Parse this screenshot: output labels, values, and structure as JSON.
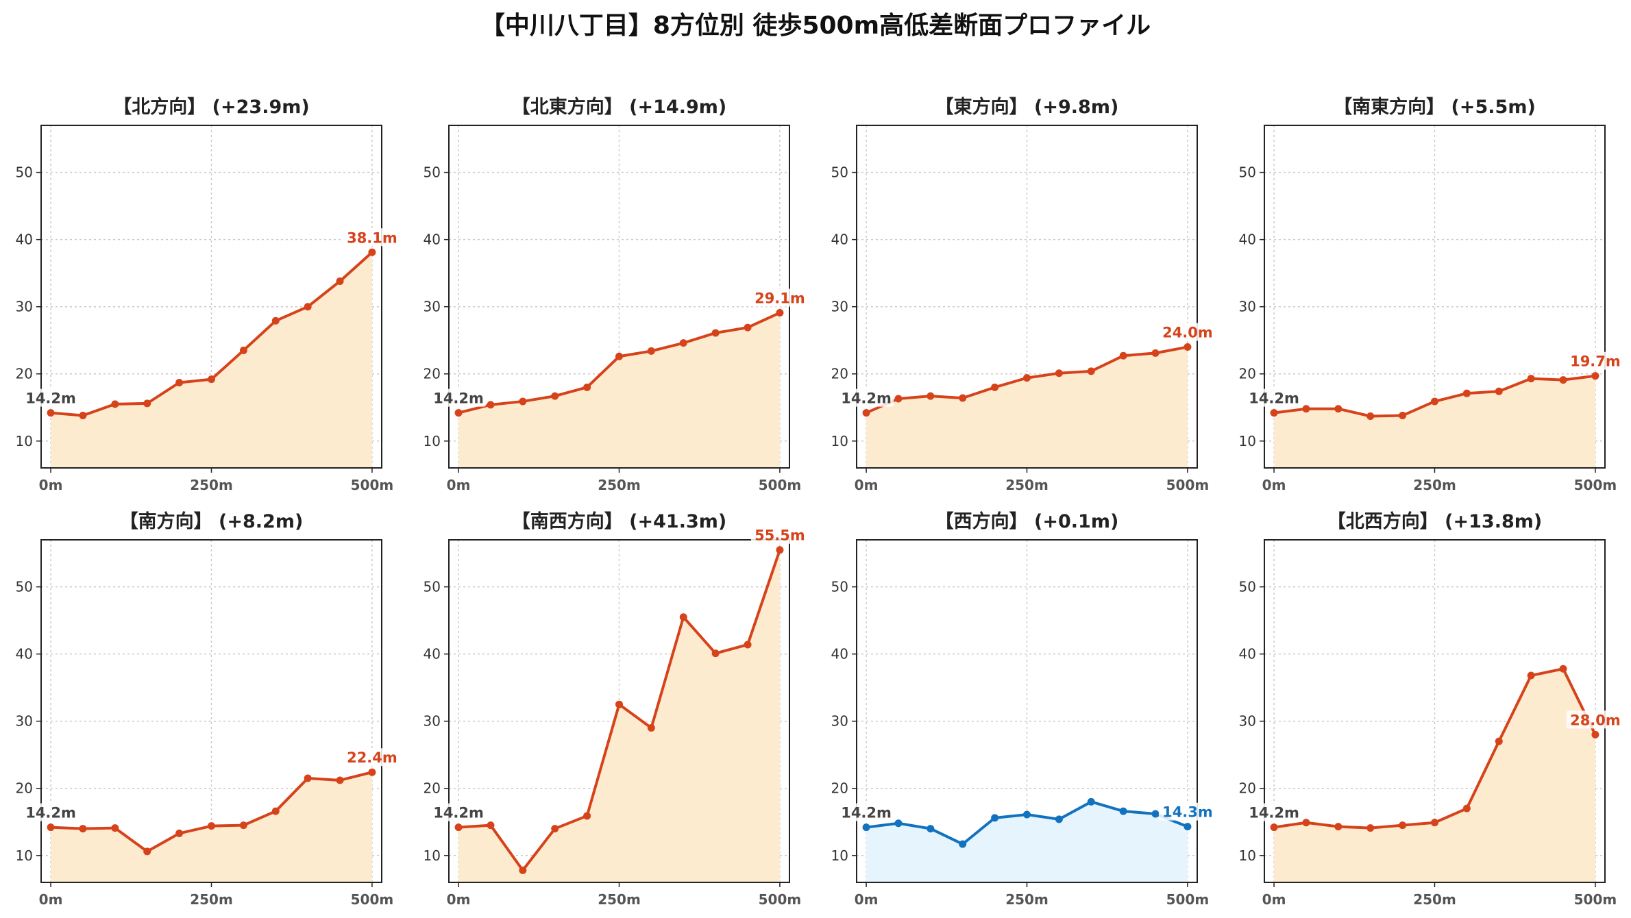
{
  "title": "【中川八丁目】8方位別 徒歩500m高低差断面プロファイル",
  "colors": {
    "up_line": "#d6431b",
    "up_fill": "#fdebd0",
    "flat_line": "#1272c0",
    "flat_fill": "#e6f5fd"
  },
  "chart_data": [
    {
      "type": "line",
      "title": "【北方向】 (+23.9m)",
      "x": [
        0,
        50,
        100,
        150,
        200,
        250,
        300,
        350,
        400,
        450,
        500
      ],
      "values": [
        14.2,
        13.8,
        15.5,
        15.6,
        18.7,
        19.2,
        23.5,
        27.9,
        30.0,
        33.8,
        38.1
      ],
      "start_label": "14.2m",
      "end_label": "38.1m",
      "color": "up",
      "xticks": [
        "0m",
        "250m",
        "500m"
      ],
      "yticks": [
        10,
        20,
        30,
        40,
        50
      ],
      "ylim": [
        6,
        57
      ],
      "xlim": [
        -15,
        515
      ],
      "grid": true
    },
    {
      "type": "line",
      "title": "【北東方向】 (+14.9m)",
      "x": [
        0,
        50,
        100,
        150,
        200,
        250,
        300,
        350,
        400,
        450,
        500
      ],
      "values": [
        14.2,
        15.4,
        15.9,
        16.7,
        18.0,
        22.6,
        23.4,
        24.6,
        26.1,
        26.9,
        29.1
      ],
      "start_label": "14.2m",
      "end_label": "29.1m",
      "color": "up",
      "xticks": [
        "0m",
        "250m",
        "500m"
      ],
      "yticks": [
        10,
        20,
        30,
        40,
        50
      ],
      "ylim": [
        6,
        57
      ],
      "xlim": [
        -15,
        515
      ],
      "grid": true
    },
    {
      "type": "line",
      "title": "【東方向】 (+9.8m)",
      "x": [
        0,
        50,
        100,
        150,
        200,
        250,
        300,
        350,
        400,
        450,
        500
      ],
      "values": [
        14.2,
        16.3,
        16.7,
        16.4,
        18.0,
        19.4,
        20.1,
        20.4,
        22.7,
        23.1,
        24.0
      ],
      "start_label": "14.2m",
      "end_label": "24.0m",
      "color": "up",
      "xticks": [
        "0m",
        "250m",
        "500m"
      ],
      "yticks": [
        10,
        20,
        30,
        40,
        50
      ],
      "ylim": [
        6,
        57
      ],
      "xlim": [
        -15,
        515
      ],
      "grid": true
    },
    {
      "type": "line",
      "title": "【南東方向】 (+5.5m)",
      "x": [
        0,
        50,
        100,
        150,
        200,
        250,
        300,
        350,
        400,
        450,
        500
      ],
      "values": [
        14.2,
        14.8,
        14.8,
        13.7,
        13.8,
        15.9,
        17.1,
        17.4,
        19.3,
        19.1,
        19.7
      ],
      "start_label": "14.2m",
      "end_label": "19.7m",
      "color": "up",
      "xticks": [
        "0m",
        "250m",
        "500m"
      ],
      "yticks": [
        10,
        20,
        30,
        40,
        50
      ],
      "ylim": [
        6,
        57
      ],
      "xlim": [
        -15,
        515
      ],
      "grid": true
    },
    {
      "type": "line",
      "title": "【南方向】 (+8.2m)",
      "x": [
        0,
        50,
        100,
        150,
        200,
        250,
        300,
        350,
        400,
        450,
        500
      ],
      "values": [
        14.2,
        14.0,
        14.1,
        10.6,
        13.3,
        14.4,
        14.5,
        16.6,
        21.5,
        21.2,
        22.4
      ],
      "start_label": "14.2m",
      "end_label": "22.4m",
      "color": "up",
      "xticks": [
        "0m",
        "250m",
        "500m"
      ],
      "yticks": [
        10,
        20,
        30,
        40,
        50
      ],
      "ylim": [
        6,
        57
      ],
      "xlim": [
        -15,
        515
      ],
      "grid": true
    },
    {
      "type": "line",
      "title": "【南西方向】 (+41.3m)",
      "x": [
        0,
        50,
        100,
        150,
        200,
        250,
        300,
        350,
        400,
        450,
        500
      ],
      "values": [
        14.2,
        14.5,
        7.8,
        14.0,
        15.9,
        32.5,
        29.0,
        45.5,
        40.1,
        41.4,
        55.5
      ],
      "start_label": "14.2m",
      "end_label": "55.5m",
      "color": "up",
      "xticks": [
        "0m",
        "250m",
        "500m"
      ],
      "yticks": [
        10,
        20,
        30,
        40,
        50
      ],
      "ylim": [
        6,
        57
      ],
      "xlim": [
        -15,
        515
      ],
      "grid": true
    },
    {
      "type": "line",
      "title": "【西方向】 (+0.1m)",
      "x": [
        0,
        50,
        100,
        150,
        200,
        250,
        300,
        350,
        400,
        450,
        500
      ],
      "values": [
        14.2,
        14.8,
        14.0,
        11.7,
        15.6,
        16.1,
        15.4,
        18.0,
        16.6,
        16.2,
        14.3
      ],
      "start_label": "14.2m",
      "end_label": "14.3m",
      "color": "flat",
      "xticks": [
        "0m",
        "250m",
        "500m"
      ],
      "yticks": [
        10,
        20,
        30,
        40,
        50
      ],
      "ylim": [
        6,
        57
      ],
      "xlim": [
        -15,
        515
      ],
      "grid": true
    },
    {
      "type": "line",
      "title": "【北西方向】 (+13.8m)",
      "x": [
        0,
        50,
        100,
        150,
        200,
        250,
        300,
        350,
        400,
        450,
        500
      ],
      "values": [
        14.2,
        14.9,
        14.3,
        14.1,
        14.5,
        14.9,
        17.0,
        27.0,
        36.8,
        37.8,
        28.0
      ],
      "start_label": "14.2m",
      "end_label": "28.0m",
      "color": "up",
      "xticks": [
        "0m",
        "250m",
        "500m"
      ],
      "yticks": [
        10,
        20,
        30,
        40,
        50
      ],
      "ylim": [
        6,
        57
      ],
      "xlim": [
        -15,
        515
      ],
      "grid": true
    }
  ]
}
